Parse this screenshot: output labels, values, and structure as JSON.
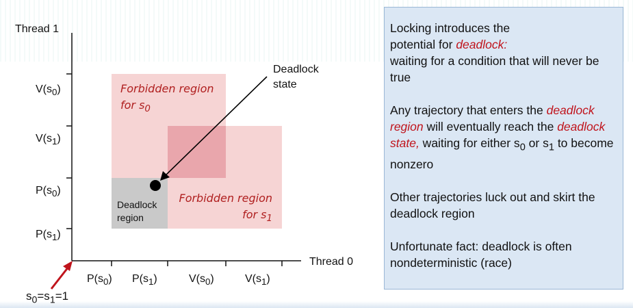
{
  "axes": {
    "y_title": "Thread 1",
    "x_title": "Thread 0",
    "y_ticks": [
      {
        "id": "v-s0",
        "text": "V(s",
        "sub": "0",
        "after": ")"
      },
      {
        "id": "v-s1",
        "text": "V(s",
        "sub": "1",
        "after": ")"
      },
      {
        "id": "p-s0",
        "text": "P(s",
        "sub": "0",
        "after": ")"
      },
      {
        "id": "p-s1",
        "text": "P(s",
        "sub": "1",
        "after": ")"
      }
    ],
    "x_ticks": [
      {
        "id": "p-s0",
        "text": "P(s",
        "sub": "0",
        "after": ")"
      },
      {
        "id": "p-s1",
        "text": "P(s",
        "sub": "1",
        "after": ")"
      },
      {
        "id": "v-s0",
        "text": "V(s",
        "sub": "0",
        "after": ")"
      },
      {
        "id": "v-s1",
        "text": "V(s",
        "sub": "1",
        "after": ")"
      }
    ]
  },
  "regions": {
    "forbidden_s0": {
      "line1": "Forbidden region",
      "line2_pre": "for s",
      "line2_sub": "0"
    },
    "forbidden_s1": {
      "line1": "Forbidden region",
      "line2_pre": "for s",
      "line2_sub": "1"
    },
    "deadlock": {
      "line1": "Deadlock",
      "line2": "region"
    }
  },
  "deadlock_state": {
    "line1": "Deadlock",
    "line2": "state"
  },
  "origin": {
    "pre": "s",
    "sub0": "0",
    "mid": "=s",
    "sub1": "1",
    "post": "=1"
  },
  "note": {
    "p1_a": "Locking introduces  the",
    "p1_b": "potential for ",
    "p1_hl": "deadlock:",
    "p1_c": "waiting for a condition that will never be true",
    "p2_a": "Any trajectory that enters the ",
    "p2_hl1": "deadlock region",
    "p2_b": " will eventually reach the ",
    "p2_hl2": "deadlock state,",
    "p2_c": " waiting for either s",
    "p2_sub0": "0",
    "p2_d": " or s",
    "p2_sub1": "1",
    "p2_e": " to become nonzero",
    "p3": "Other trajectories luck out and skirt the deadlock region",
    "p4": "Unfortunate fact: deadlock is often nondeterministic (race)"
  },
  "colors": {
    "forbidden": "#f5c9c9",
    "overlap": "#eaa3a9",
    "deadlock_region": "#c8c8c8",
    "arrow_red": "#c0141c",
    "note_bg": "#dbe7f4"
  }
}
